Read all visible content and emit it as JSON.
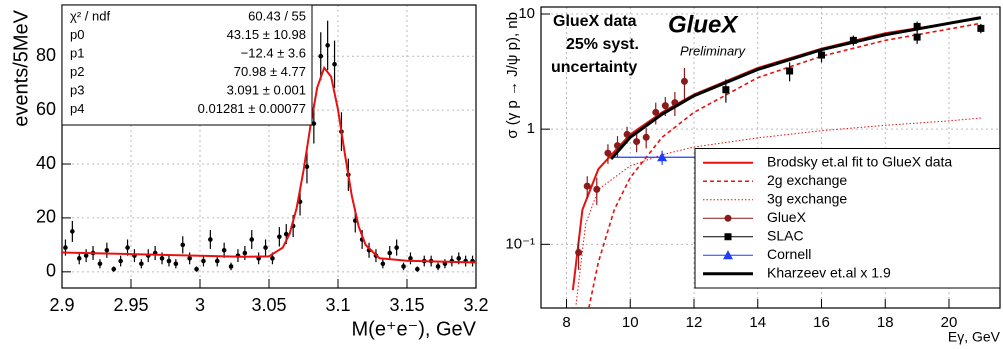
{
  "chart_data": [
    {
      "type": "scatter",
      "xlabel": "M(e⁺e⁻), GeV",
      "ylabel": "events/5MeV",
      "xlim": [
        2.9,
        3.2
      ],
      "ylim": [
        -6,
        99
      ],
      "xticks": [
        2.9,
        2.95,
        3,
        3.05,
        3.1,
        3.15,
        3.2
      ],
      "yticks": [
        0,
        20,
        40,
        60,
        80
      ],
      "grid": true,
      "stats": [
        [
          "χ² / ndf",
          "60.43 / 55"
        ],
        [
          "p0",
          "43.15 ± 10.98"
        ],
        [
          "p1",
          "−12.4 ± 3.6"
        ],
        [
          "p2",
          "70.98 ± 4.77"
        ],
        [
          "p3",
          "3.091 ± 0.001"
        ],
        [
          "p4",
          "0.01281 ± 0.00077"
        ]
      ],
      "series": [
        {
          "mark": "point",
          "color": "#000000",
          "x": [
            2.9025,
            2.9075,
            2.9125,
            2.9175,
            2.9225,
            2.9275,
            2.9325,
            2.9375,
            2.9425,
            2.9475,
            2.9525,
            2.9575,
            2.9625,
            2.9675,
            2.9725,
            2.9775,
            2.9825,
            2.9875,
            2.9925,
            2.9975,
            3.0025,
            3.0075,
            3.0125,
            3.0175,
            3.0225,
            3.0275,
            3.0325,
            3.0375,
            3.0425,
            3.0475,
            3.0525,
            3.0575,
            3.0625,
            3.0675,
            3.0725,
            3.0775,
            3.0825,
            3.0875,
            3.0925,
            3.0975,
            3.1025,
            3.1075,
            3.1125,
            3.1175,
            3.1225,
            3.1275,
            3.1325,
            3.1375,
            3.1425,
            3.1475,
            3.1525,
            3.1575,
            3.1625,
            3.1675,
            3.1725,
            3.1775,
            3.1825,
            3.1875,
            3.1925,
            3.1975
          ],
          "values": [
            9,
            15,
            5,
            6,
            7,
            3,
            8,
            1,
            4,
            9,
            6,
            3,
            6,
            7,
            5,
            4,
            3,
            10,
            5,
            1,
            4,
            12,
            4,
            8,
            2,
            6,
            7,
            12,
            5,
            9,
            5,
            13,
            14,
            17,
            26,
            39,
            55,
            80,
            84,
            77,
            52,
            36,
            19,
            12,
            8,
            6,
            3,
            7,
            9,
            2,
            5,
            1,
            4,
            4,
            2,
            3,
            4,
            5,
            4,
            4
          ],
          "errors": [
            3,
            3.9,
            2.2,
            2.4,
            2.6,
            1.7,
            2.8,
            1,
            2,
            3,
            2.4,
            1.7,
            2.4,
            2.6,
            2.2,
            2,
            1.7,
            3.2,
            2.2,
            1,
            2,
            3.5,
            2,
            2.8,
            1.4,
            2.4,
            2.6,
            3.5,
            2.2,
            3,
            2.2,
            3.6,
            3.7,
            4.1,
            5.1,
            6.2,
            7.4,
            8.9,
            9.2,
            8.8,
            7.2,
            6,
            4.4,
            3.5,
            2.8,
            2.4,
            1.7,
            2.6,
            3,
            1.4,
            2.2,
            1,
            2,
            2,
            1.4,
            1.7,
            2,
            2.2,
            2,
            2
          ]
        },
        {
          "mark": "line",
          "color": "#e8110f",
          "x": [
            2.9,
            2.95,
            3.0,
            3.03,
            3.05,
            3.06,
            3.065,
            3.07,
            3.075,
            3.08,
            3.085,
            3.09,
            3.095,
            3.1,
            3.105,
            3.11,
            3.115,
            3.12,
            3.13,
            3.15,
            3.2
          ],
          "values": [
            7.19,
            6.57,
            5.95,
            5.58,
            5.75,
            9.0,
            14.2,
            23.6,
            37.5,
            54.0,
            68.5,
            75.7,
            72.4,
            60.2,
            43.7,
            28.2,
            16.8,
            10.0,
            5.03,
            4.09,
            3.47
          ]
        }
      ]
    },
    {
      "type": "scatter",
      "xlabel": "Eγ, GeV",
      "ylabel": "σ (γ p → J/ψ p), nb",
      "annotations": [
        "GlueX data",
        "25% syst.",
        "uncertainty"
      ],
      "logo_text": "GlueX",
      "logo_subtitle": "Preliminary",
      "yscale": "log",
      "xlim": [
        7.2,
        21.6
      ],
      "ylim": [
        0.028,
        11.5
      ],
      "xticks": [
        8,
        10,
        12,
        14,
        16,
        18,
        20
      ],
      "yticks": [
        {
          "value": 0.1,
          "label": "10⁻¹"
        },
        1,
        10
      ],
      "grid": true,
      "legend": "lower right",
      "series": [
        {
          "name": "Brodsky et.al fit to GlueX data",
          "mark": "line",
          "color": "#e8110f",
          "x": [
            8.2,
            8.5,
            9,
            10,
            11,
            12,
            14,
            16,
            18,
            20,
            21
          ],
          "values": [
            0.04,
            0.2,
            0.45,
            0.9,
            1.4,
            2.0,
            3.4,
            5.0,
            6.8,
            8.3,
            9.2
          ]
        },
        {
          "name": "2g exchange",
          "mark": "dashed",
          "color": "#e8110f",
          "x": [
            8.7,
            9,
            9.5,
            10,
            11,
            12,
            14,
            16,
            18,
            20,
            21
          ],
          "values": [
            0.028,
            0.07,
            0.2,
            0.38,
            0.85,
            1.4,
            2.8,
            4.3,
            5.9,
            7.4,
            8.3
          ]
        },
        {
          "name": "3g exchange",
          "mark": "dotted",
          "color": "#e8110f",
          "x": [
            8.3,
            8.6,
            9,
            10,
            11,
            12,
            14,
            16,
            18,
            20,
            21
          ],
          "values": [
            0.03,
            0.15,
            0.3,
            0.48,
            0.6,
            0.7,
            0.84,
            0.97,
            1.08,
            1.18,
            1.25
          ]
        },
        {
          "name": "GlueX",
          "mark": "circle",
          "color": "#8b1a1a",
          "x": [
            8.38,
            8.65,
            8.95,
            9.3,
            9.6,
            9.9,
            10.2,
            10.5,
            10.8,
            11.1,
            11.4,
            11.7
          ],
          "values": [
            0.085,
            0.32,
            0.3,
            0.62,
            0.72,
            0.9,
            0.78,
            0.85,
            1.4,
            1.6,
            1.7,
            2.6
          ],
          "errors": [
            0.025,
            0.07,
            0.08,
            0.12,
            0.15,
            0.15,
            0.15,
            0.17,
            0.3,
            0.3,
            0.4,
            0.8
          ]
        },
        {
          "name": "SLAC",
          "mark": "square",
          "color": "#000000",
          "x": [
            13,
            15,
            16,
            17,
            19,
            19,
            21
          ],
          "values": [
            2.2,
            3.2,
            4.4,
            5.9,
            6.3,
            7.8,
            7.5
          ],
          "errors": [
            0.5,
            0.6,
            0.6,
            0.6,
            0.8,
            0.8,
            0.7
          ]
        },
        {
          "name": "Cornell",
          "mark": "triangle",
          "color": "#1f3fff",
          "x": [
            11
          ],
          "values": [
            0.57
          ],
          "errors": [
            0.08
          ],
          "xerrors": [
            1.6
          ]
        },
        {
          "name": "Kharzeev et.al x 1.9",
          "mark": "thick",
          "color": "#000000",
          "x": [
            9.4,
            10,
            11,
            12,
            14,
            16,
            18,
            20,
            21
          ],
          "values": [
            0.55,
            0.85,
            1.35,
            1.95,
            3.3,
            4.9,
            6.6,
            8.3,
            9.3
          ]
        }
      ]
    }
  ]
}
